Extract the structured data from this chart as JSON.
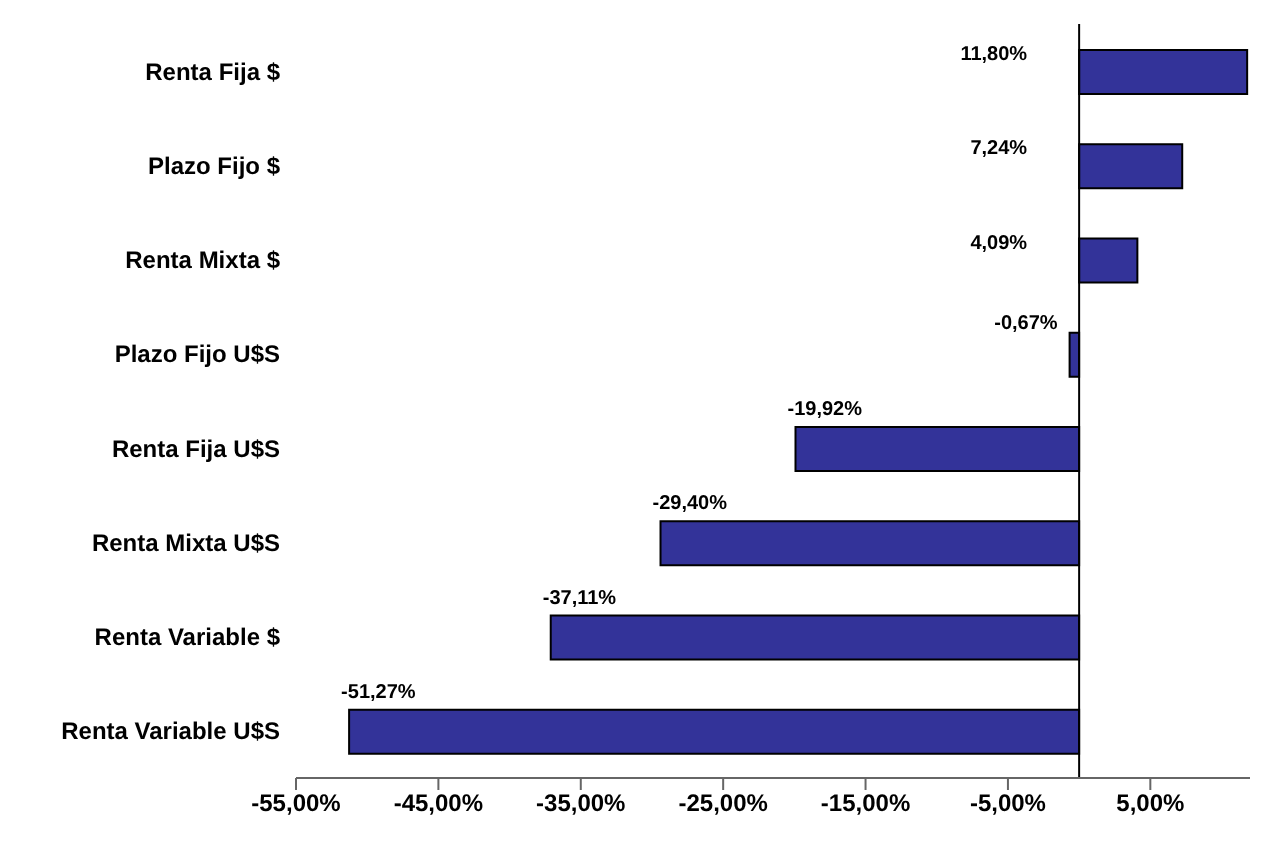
{
  "chart_data": {
    "type": "bar",
    "orientation": "horizontal",
    "categories": [
      "Renta Fija $",
      "Plazo Fijo $",
      "Renta Mixta $",
      "Plazo Fijo U$S",
      "Renta Fija U$S",
      "Renta Mixta U$S",
      "Renta Variable $",
      "Renta Variable U$S"
    ],
    "values": [
      11.8,
      7.24,
      4.09,
      -0.67,
      -19.92,
      -29.4,
      -37.11,
      -51.27
    ],
    "value_labels": [
      "11,80%",
      "7,24%",
      "4,09%",
      "-0,67%",
      "-19,92%",
      "-29,40%",
      "-37,11%",
      "-51,27%"
    ],
    "color": "#333399",
    "xlim": [
      -55,
      12
    ],
    "xticks": [
      {
        "value": -55,
        "label": "-55,00%"
      },
      {
        "value": -45,
        "label": "-45,00%"
      },
      {
        "value": -35,
        "label": "-35,00%"
      },
      {
        "value": -25,
        "label": "-25,00%"
      },
      {
        "value": -15,
        "label": "-15,00%"
      },
      {
        "value": -5,
        "label": "-5,00%"
      },
      {
        "value": 5,
        "label": "5,00%"
      }
    ],
    "ylabel": null
  }
}
